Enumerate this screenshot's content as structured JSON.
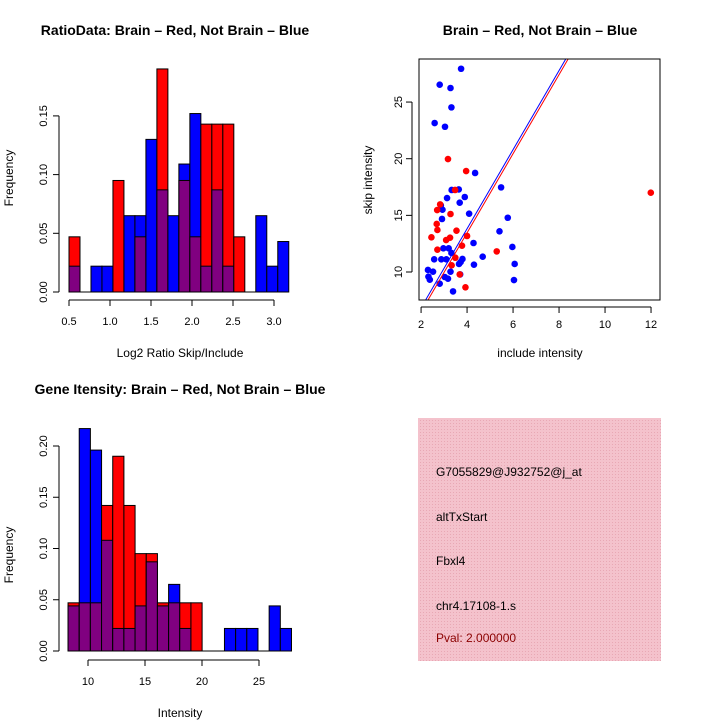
{
  "colors": {
    "red": "#ff0000",
    "blue": "#0000ff",
    "purple": "#800080",
    "panel": "#f4c2cc",
    "pval": "#8b0000"
  },
  "chart_data": [
    {
      "type": "bar",
      "subtype": "overlaid-histogram",
      "title": "RatioData: Brain – Red, Not Brain – Blue",
      "xlabel": "Log2 Ratio Skip/Include",
      "ylabel": "Frequency",
      "xticks": [
        "0.5",
        "1.0",
        "1.5",
        "2.0",
        "2.5",
        "3.0"
      ],
      "xtick_values": [
        0.5,
        1.0,
        1.5,
        2.0,
        2.5,
        3.0
      ],
      "yticks": [
        "0.00",
        "0.05",
        "0.10",
        "0.15"
      ],
      "ytick_values": [
        0,
        0.05,
        0.1,
        0.15
      ],
      "bin_start": 0.5,
      "bin_width": 0.134,
      "series": [
        {
          "name": "Brain",
          "color": "red",
          "values": [
            0.047,
            0,
            0,
            0,
            0.095,
            0,
            0.047,
            0,
            0.19,
            0,
            0.095,
            0.047,
            0.143,
            0.143,
            0.143,
            0.047,
            0,
            0,
            0,
            0
          ]
        },
        {
          "name": "Not Brain",
          "color": "blue",
          "values": [
            0.022,
            0,
            0.022,
            0.022,
            0,
            0.065,
            0.065,
            0.13,
            0.087,
            0.065,
            0.109,
            0.152,
            0.022,
            0.087,
            0.022,
            0,
            0,
            0.065,
            0.022,
            0.043
          ]
        }
      ]
    },
    {
      "type": "scatter",
      "title": "Brain – Red, Not Brain – Blue",
      "xlabel": "include intensity",
      "ylabel": "skip intensity",
      "xlim": [
        1.91,
        12.39
      ],
      "ylim": [
        7.53,
        28.8
      ],
      "xticks": [
        "2",
        "4",
        "6",
        "8",
        "10",
        "12"
      ],
      "xtick_values": [
        2,
        4,
        6,
        8,
        10,
        12
      ],
      "yticks": [
        "10",
        "15",
        "20",
        "25"
      ],
      "ytick_values": [
        10,
        15,
        20,
        25
      ],
      "series": [
        {
          "name": "Not Brain",
          "color": "blue",
          "points": [
            [
              3.74,
              27.94
            ],
            [
              2.81,
              26.53
            ],
            [
              3.28,
              26.24
            ],
            [
              3.32,
              24.53
            ],
            [
              2.59,
              23.15
            ],
            [
              3.04,
              22.82
            ],
            [
              4.35,
              18.74
            ],
            [
              5.48,
              17.47
            ],
            [
              3.33,
              17.24
            ],
            [
              3.64,
              17.29
            ],
            [
              3.9,
              16.62
            ],
            [
              3.13,
              16.53
            ],
            [
              3.68,
              16.12
            ],
            [
              2.86,
              15.88
            ],
            [
              2.93,
              15.5
            ],
            [
              2.91,
              14.68
            ],
            [
              4.09,
              15.15
            ],
            [
              5.77,
              14.79
            ],
            [
              5.41,
              13.59
            ],
            [
              3.32,
              11.68
            ],
            [
              4.28,
              12.56
            ],
            [
              5.97,
              12.21
            ],
            [
              2.97,
              12.09
            ],
            [
              3.2,
              12.09
            ],
            [
              2.57,
              11.12
            ],
            [
              2.88,
              11.12
            ],
            [
              3.1,
              11.12
            ],
            [
              3.8,
              11.15
            ],
            [
              3.72,
              10.88
            ],
            [
              3.65,
              10.71
            ],
            [
              4.68,
              11.35
            ],
            [
              4.3,
              10.65
            ],
            [
              6.07,
              10.71
            ],
            [
              2.3,
              10.18
            ],
            [
              2.52,
              10.03
            ],
            [
              3.28,
              10.03
            ],
            [
              3.7,
              9.79
            ],
            [
              2.32,
              9.59
            ],
            [
              2.38,
              9.32
            ],
            [
              3.03,
              9.56
            ],
            [
              3.17,
              9.41
            ],
            [
              2.81,
              8.97
            ],
            [
              3.39,
              8.29
            ],
            [
              6.04,
              9.29
            ]
          ],
          "fit": {
            "slope": 3.49,
            "intercept": -0.14
          }
        },
        {
          "name": "Brain",
          "color": "red",
          "points": [
            [
              11.99,
              17.0
            ],
            [
              3.17,
              19.97
            ],
            [
              3.96,
              18.91
            ],
            [
              3.48,
              17.24
            ],
            [
              2.83,
              15.97
            ],
            [
              2.7,
              15.47
            ],
            [
              3.28,
              15.12
            ],
            [
              2.68,
              14.24
            ],
            [
              2.71,
              13.71
            ],
            [
              3.54,
              13.65
            ],
            [
              2.45,
              13.06
            ],
            [
              3.26,
              13.03
            ],
            [
              3.09,
              12.82
            ],
            [
              4.0,
              13.18
            ],
            [
              3.78,
              12.32
            ],
            [
              2.71,
              11.97
            ],
            [
              3.49,
              11.26
            ],
            [
              3.33,
              10.59
            ],
            [
              3.68,
              9.79
            ],
            [
              3.93,
              8.65
            ],
            [
              5.29,
              11.82
            ]
          ],
          "fit": {
            "slope": 3.49,
            "intercept": -0.5
          }
        }
      ]
    },
    {
      "type": "bar",
      "subtype": "overlaid-histogram",
      "title": "Gene Itensity: Brain – Red, Not Brain – Blue",
      "xlabel": "Intensity",
      "ylabel": "Frequency",
      "xticks": [
        "10",
        "15",
        "20",
        "25"
      ],
      "xtick_values": [
        10,
        15,
        20,
        25
      ],
      "yticks": [
        "0.00",
        "0.05",
        "0.10",
        "0.15",
        "0.20"
      ],
      "ytick_values": [
        0,
        0.05,
        0.1,
        0.15,
        0.2
      ],
      "bin_start": 8.25,
      "bin_width": 0.98,
      "series": [
        {
          "name": "Brain",
          "color": "red",
          "values": [
            0.047,
            0.047,
            0.047,
            0.142,
            0.19,
            0.142,
            0.095,
            0.095,
            0.047,
            0.047,
            0.047,
            0.047,
            0,
            0,
            0,
            0,
            0,
            0,
            0,
            0
          ]
        },
        {
          "name": "Not Brain",
          "color": "blue",
          "values": [
            0.044,
            0.217,
            0.196,
            0.108,
            0.022,
            0.022,
            0.044,
            0.087,
            0.044,
            0.065,
            0.022,
            0,
            0,
            0,
            0.022,
            0.022,
            0.022,
            0,
            0.044,
            0.022
          ]
        }
      ]
    }
  ],
  "info_panel": {
    "probe_id": "G7055829@J932752@j_at",
    "event_type": "altTxStart",
    "gene": "Fbxl4",
    "location": "chr4.17108-1.s",
    "pval": "Pval: 2.000000"
  }
}
